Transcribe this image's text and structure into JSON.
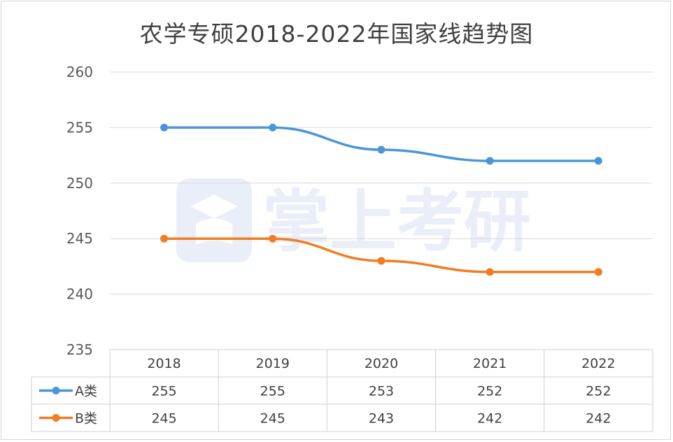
{
  "chart_data": {
    "type": "line",
    "title": "农学专硕2018-2022年国家线趋势图",
    "categories": [
      "2018",
      "2019",
      "2020",
      "2021",
      "2022"
    ],
    "series": [
      {
        "name": "A类",
        "values": [
          255,
          255,
          253,
          252,
          252
        ],
        "color": "#4a96d8"
      },
      {
        "name": "B类",
        "values": [
          245,
          245,
          243,
          242,
          242
        ],
        "color": "#ef7d22"
      }
    ],
    "ylim": [
      235,
      260
    ],
    "yticks": [
      235,
      240,
      245,
      250,
      255,
      260
    ],
    "grid": true,
    "legend": "data-table"
  },
  "watermark": "掌上考研"
}
